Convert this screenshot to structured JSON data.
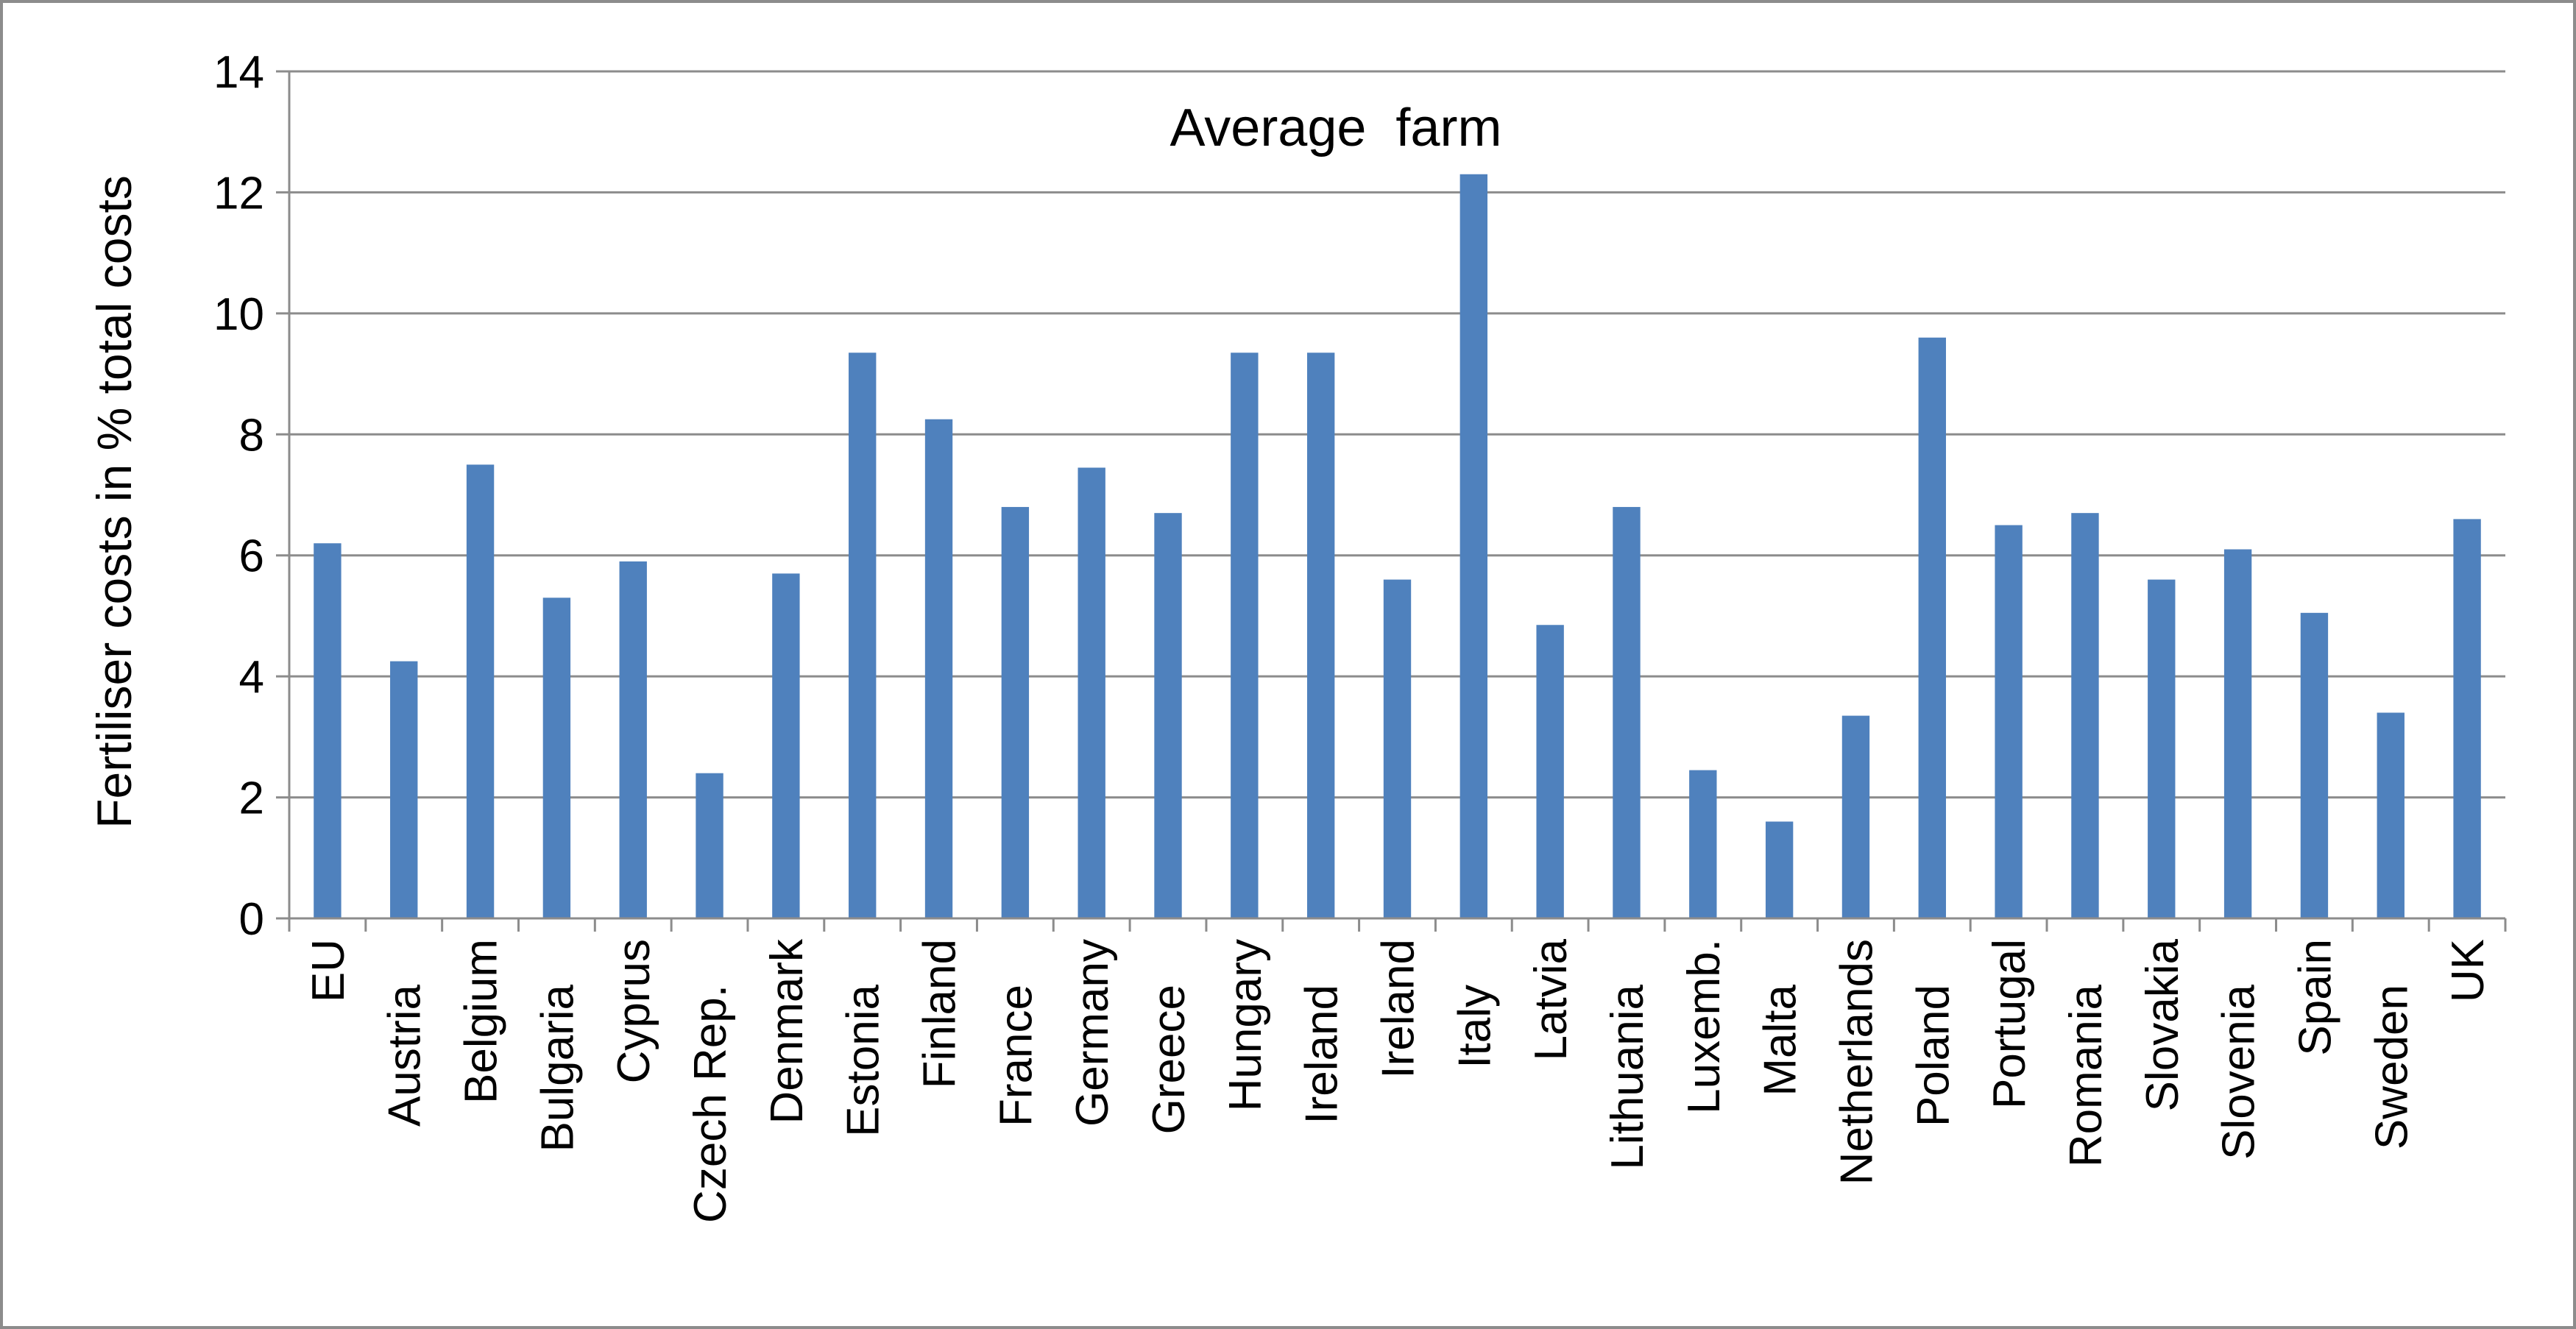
{
  "chart_data": {
    "type": "bar",
    "title": "Average  farm",
    "xlabel": "",
    "ylabel": "Fertiliser costs in % total costs",
    "ylim": [
      0,
      14
    ],
    "yticks": [
      0,
      2,
      4,
      6,
      8,
      10,
      12,
      14
    ],
    "grid": true,
    "legend": "none",
    "bar_color": "#4f81bd",
    "categories": [
      "EU",
      "Austria",
      "Belgium",
      "Bulgaria",
      "Cyprus",
      "Czech Rep.",
      "Denmark",
      "Estonia",
      "Finland",
      "France",
      "Germany",
      "Greece",
      "Hungary",
      "Ireland",
      "Ireland",
      "Italy",
      "Latvia",
      "Lithuania",
      "Luxemb.",
      "Malta",
      "Netherlands",
      "Poland",
      "Portugal",
      "Romania",
      "Slovakia",
      "Slovenia",
      "Spain",
      "Sweden",
      "UK"
    ],
    "values": [
      6.2,
      4.25,
      7.5,
      5.3,
      5.9,
      2.4,
      5.7,
      9.35,
      8.25,
      6.8,
      7.45,
      6.7,
      9.35,
      9.35,
      5.6,
      12.3,
      4.85,
      6.8,
      2.45,
      1.6,
      3.35,
      9.6,
      6.5,
      6.7,
      5.6,
      6.1,
      5.05,
      3.4,
      6.6
    ]
  }
}
